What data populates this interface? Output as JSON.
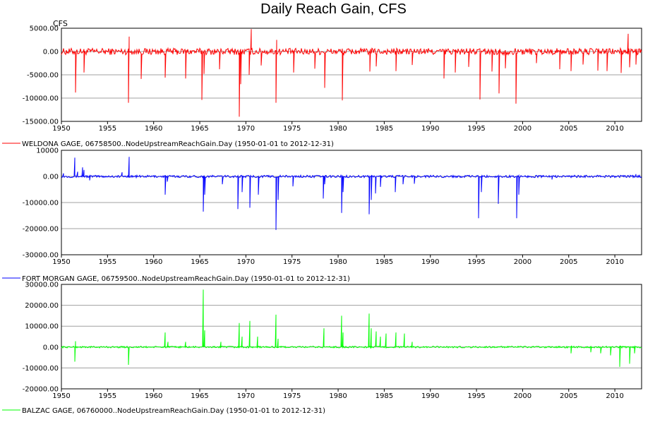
{
  "title": "Daily Reach Gain, CFS",
  "units_label": "CFS",
  "chart_data": [
    {
      "type": "line",
      "xlim": [
        1950,
        2012.9
      ],
      "x_ticks": [
        "1950",
        "1955",
        "1960",
        "1965",
        "1970",
        "1975",
        "1980",
        "1985",
        "1990",
        "1995",
        "2000",
        "2005",
        "2010"
      ],
      "ylim": [
        -15000,
        5000
      ],
      "y_ticks": [
        "5000.00",
        "0.00",
        "-5000.00",
        "-10000.00",
        "-15000.00"
      ],
      "grid": true,
      "series": [
        {
          "name": "WELDONA GAGE, 06758500..NodeUpstreamReachGain.Day (1950-01-01 to 2012-12-31)",
          "color": "#ff0000",
          "noise": 700,
          "spikes": [
            [
              1951.6,
              -8800
            ],
            [
              1952.5,
              -4500
            ],
            [
              1957.3,
              -11000
            ],
            [
              1957.4,
              3200
            ],
            [
              1958.7,
              -5900
            ],
            [
              1961.3,
              -5600
            ],
            [
              1963.5,
              -5800
            ],
            [
              1965.3,
              -10400
            ],
            [
              1965.5,
              -4800
            ],
            [
              1967.2,
              -3800
            ],
            [
              1969.3,
              -14000
            ],
            [
              1969.5,
              -7000
            ],
            [
              1970.4,
              -5000
            ],
            [
              1970.6,
              4800
            ],
            [
              1971.7,
              -3000
            ],
            [
              1973.3,
              -11000
            ],
            [
              1973.4,
              2500
            ],
            [
              1975.2,
              -4500
            ],
            [
              1977.5,
              -3700
            ],
            [
              1978.6,
              -7800
            ],
            [
              1980.5,
              -10500
            ],
            [
              1983.5,
              -4300
            ],
            [
              1984.2,
              -3200
            ],
            [
              1986.3,
              -4200
            ],
            [
              1988.1,
              -2900
            ],
            [
              1991.5,
              -5800
            ],
            [
              1992.7,
              -4500
            ],
            [
              1994.2,
              -3300
            ],
            [
              1995.4,
              -10300
            ],
            [
              1996.7,
              -4300
            ],
            [
              1997.5,
              -9000
            ],
            [
              1998.2,
              -3600
            ],
            [
              1999.3,
              -11200
            ],
            [
              2001.5,
              -2500
            ],
            [
              2004.1,
              -3800
            ],
            [
              2005.3,
              -4200
            ],
            [
              2006.6,
              -2800
            ],
            [
              2008.2,
              -4100
            ],
            [
              2009.2,
              -4200
            ],
            [
              2010.7,
              -4600
            ],
            [
              2011.5,
              3800
            ],
            [
              2011.6,
              -3400
            ],
            [
              2012.3,
              -2800
            ]
          ]
        }
      ]
    },
    {
      "type": "line",
      "xlim": [
        1950,
        2012.9
      ],
      "x_ticks": [
        "1950",
        "1955",
        "1960",
        "1965",
        "1970",
        "1975",
        "1980",
        "1985",
        "1990",
        "1995",
        "2000",
        "2005",
        "2010"
      ],
      "ylim": [
        -30000,
        10000
      ],
      "y_ticks": [
        "10000",
        "0.00",
        "-10000.00",
        "-20000.00",
        "-30000.00"
      ],
      "grid": true,
      "series": [
        {
          "name": "FORT MORGAN GAGE, 06759500..NodeUpstreamReachGain.Day (1950-01-01 to 2012-12-31)",
          "color": "#0000ff",
          "noise": 450,
          "spikes": [
            [
              1950.3,
              1200
            ],
            [
              1951.5,
              7200
            ],
            [
              1951.8,
              1800
            ],
            [
              1952.3,
              3500
            ],
            [
              1952.5,
              2500
            ],
            [
              1953.1,
              -1500
            ],
            [
              1956.6,
              1600
            ],
            [
              1957.4,
              7500
            ],
            [
              1961.3,
              -7000
            ],
            [
              1961.5,
              -2000
            ],
            [
              1965.4,
              -13500
            ],
            [
              1965.6,
              -7000
            ],
            [
              1967.5,
              -3000
            ],
            [
              1969.2,
              -12500
            ],
            [
              1969.6,
              -6000
            ],
            [
              1970.5,
              -12000
            ],
            [
              1971.4,
              -7000
            ],
            [
              1973.3,
              -20500
            ],
            [
              1973.5,
              -9000
            ],
            [
              1975.1,
              -3800
            ],
            [
              1978.4,
              -8500
            ],
            [
              1978.6,
              -3000
            ],
            [
              1980.4,
              -14000
            ],
            [
              1980.6,
              -6000
            ],
            [
              1983.4,
              -14500
            ],
            [
              1983.6,
              -9000
            ],
            [
              1984.1,
              -6500
            ],
            [
              1984.6,
              -4000
            ],
            [
              1986.2,
              -6000
            ],
            [
              1987.1,
              -3000
            ],
            [
              1988.3,
              -2800
            ],
            [
              1995.3,
              -16000
            ],
            [
              1995.6,
              -6000
            ],
            [
              1997.4,
              -10500
            ],
            [
              1999.4,
              -16000
            ],
            [
              1999.6,
              -7000
            ],
            [
              2003.2,
              -1200
            ],
            [
              2012.3,
              900
            ]
          ]
        }
      ]
    },
    {
      "type": "line",
      "xlim": [
        1950,
        2012.9
      ],
      "x_ticks": [
        "1950",
        "1955",
        "1960",
        "1965",
        "1970",
        "1975",
        "1980",
        "1985",
        "1990",
        "1995",
        "2000",
        "2005",
        "2010"
      ],
      "ylim": [
        -20000,
        30000
      ],
      "y_ticks": [
        "30000.00",
        "20000.00",
        "10000.00",
        "0.00",
        "-10000.00",
        "-20000.00"
      ],
      "grid": true,
      "series": [
        {
          "name": "BALZAC GAGE, 06760000..NodeUpstreamReachGain.Day (1950-01-01 to 2012-12-31)",
          "color": "#00ff00",
          "noise": 420,
          "spikes": [
            [
              1951.5,
              -7000
            ],
            [
              1951.6,
              2800
            ],
            [
              1957.3,
              -8500
            ],
            [
              1961.3,
              7000
            ],
            [
              1961.6,
              2500
            ],
            [
              1963.5,
              2500
            ],
            [
              1965.4,
              27500
            ],
            [
              1965.6,
              8000
            ],
            [
              1967.3,
              2500
            ],
            [
              1969.3,
              11500
            ],
            [
              1969.6,
              5000
            ],
            [
              1970.5,
              12500
            ],
            [
              1971.3,
              5000
            ],
            [
              1973.3,
              15500
            ],
            [
              1973.5,
              4000
            ],
            [
              1978.5,
              9000
            ],
            [
              1980.4,
              15000
            ],
            [
              1980.6,
              7000
            ],
            [
              1983.4,
              16000
            ],
            [
              1983.6,
              9000
            ],
            [
              1984.2,
              7500
            ],
            [
              1984.6,
              5000
            ],
            [
              1985.2,
              6500
            ],
            [
              1986.3,
              7000
            ],
            [
              1987.2,
              6500
            ],
            [
              1988.1,
              2500
            ],
            [
              2005.3,
              -3000
            ],
            [
              2007.4,
              -2500
            ],
            [
              2008.5,
              -3000
            ],
            [
              2009.6,
              -4000
            ],
            [
              2010.6,
              -9500
            ],
            [
              2011.6,
              -8000
            ],
            [
              2012.2,
              -3000
            ]
          ]
        }
      ]
    }
  ]
}
